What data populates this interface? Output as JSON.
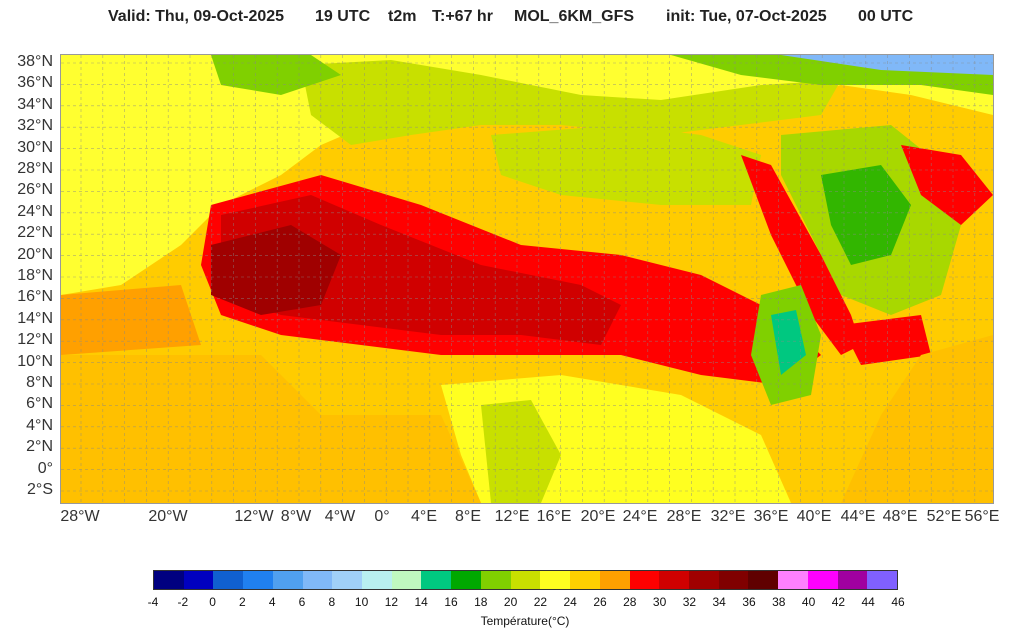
{
  "header": {
    "valid": "Valid: Thu, 09-Oct-2025",
    "time": "19 UTC",
    "variable": "t2m",
    "lead": "T:+67 hr",
    "model": "MOL_6KM_GFS",
    "init": "init: Tue, 07-Oct-2025",
    "init_time": "00 UTC"
  },
  "lat_labels": [
    "38°N",
    "36°N",
    "34°N",
    "32°N",
    "30°N",
    "28°N",
    "26°N",
    "24°N",
    "22°N",
    "20°N",
    "18°N",
    "16°N",
    "14°N",
    "12°N",
    "10°N",
    "8°N",
    "6°N",
    "4°N",
    "2°N",
    "0°",
    "2°S"
  ],
  "lon_labels": [
    "28°W",
    "20°W",
    "12°W",
    "8°W",
    "4°W",
    "0°",
    "4°E",
    "8°E",
    "12°E",
    "16°E",
    "20°E",
    "24°E",
    "28°E",
    "32°E",
    "36°E",
    "40°E",
    "44°E",
    "48°E",
    "52°E",
    "56°E"
  ],
  "colorbar": {
    "colors": [
      "#000080",
      "#0000c0",
      "#1060d0",
      "#2080f0",
      "#50a0f0",
      "#80b8f8",
      "#a0d0f8",
      "#b8f0f0",
      "#c0f8c0",
      "#00c880",
      "#00a800",
      "#80d000",
      "#c8e000",
      "#ffff20",
      "#ffd000",
      "#ffa000",
      "#ff0000",
      "#d00000",
      "#a00000",
      "#800000",
      "#600000",
      "#ff80ff",
      "#ff00ff",
      "#a000a0",
      "#8060ff"
    ],
    "labels": [
      "-4",
      "-2",
      "0",
      "2",
      "4",
      "6",
      "8",
      "10",
      "12",
      "14",
      "16",
      "18",
      "20",
      "22",
      "24",
      "26",
      "28",
      "30",
      "32",
      "34",
      "36",
      "38",
      "40",
      "42",
      "44",
      "46"
    ],
    "title": "Température(°C)"
  }
}
